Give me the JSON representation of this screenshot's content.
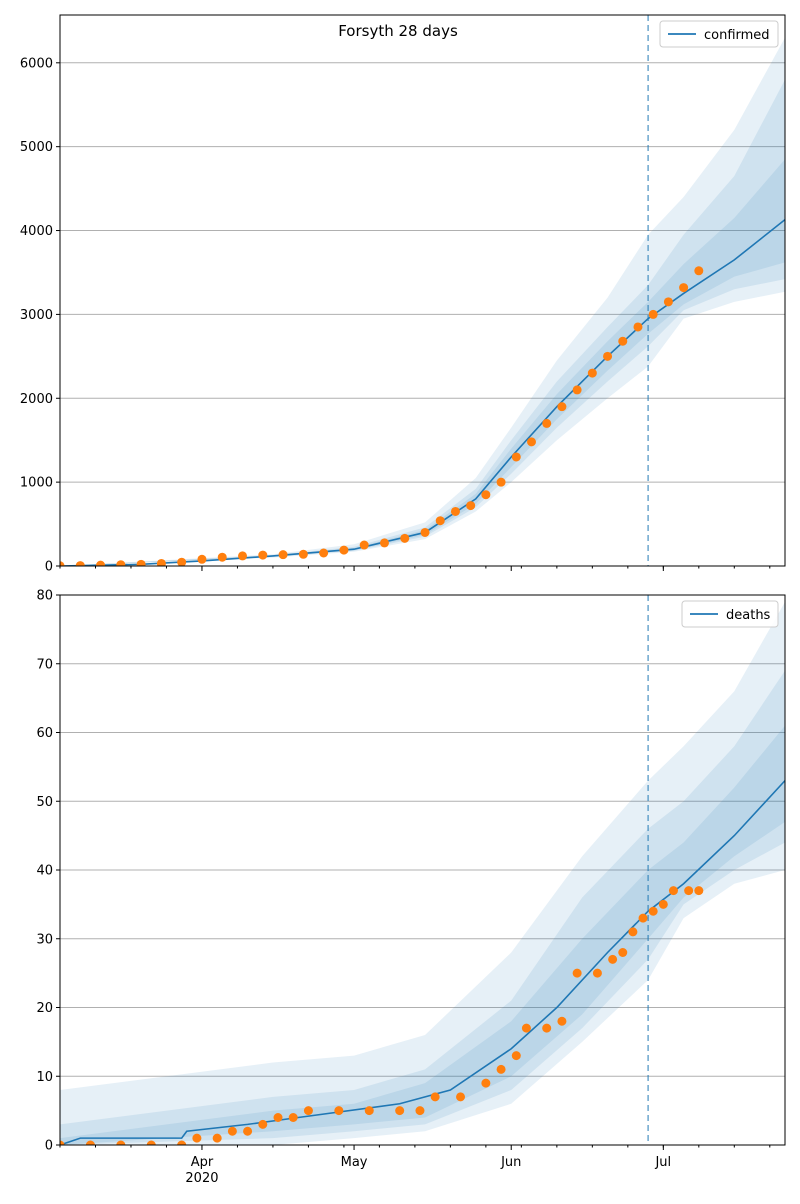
{
  "figure": {
    "title": "Forsyth 28 days"
  },
  "chart_data": [
    {
      "type": "line",
      "legend": "confirmed",
      "legend_position": "top-right",
      "grid": "horizontal",
      "ylim": [
        0,
        6570
      ],
      "y_ticks": [
        0,
        1000,
        2000,
        3000,
        4000,
        5000,
        6000
      ],
      "x_ticks": [
        {
          "value": "2020-04-01",
          "label": "Apr",
          "sublabel": "2020"
        },
        {
          "value": "2020-05-01",
          "label": "May",
          "sublabel": ""
        },
        {
          "value": "2020-06-01",
          "label": "Jun",
          "sublabel": ""
        },
        {
          "value": "2020-07-01",
          "label": "Jul",
          "sublabel": ""
        }
      ],
      "xlim": [
        "2020-03-04",
        "2020-07-25"
      ],
      "forecast_start": "2020-06-28",
      "colors": {
        "model": "#1f77b4",
        "observed": "#ff7f0e",
        "band": "#1f77b4"
      },
      "model_series": {
        "name": "confirmed",
        "points": [
          [
            "2020-03-04",
            0
          ],
          [
            "2020-03-20",
            20
          ],
          [
            "2020-04-01",
            60
          ],
          [
            "2020-04-15",
            120
          ],
          [
            "2020-05-01",
            200
          ],
          [
            "2020-05-15",
            400
          ],
          [
            "2020-05-25",
            800
          ],
          [
            "2020-06-01",
            1300
          ],
          [
            "2020-06-10",
            1900
          ],
          [
            "2020-06-20",
            2500
          ],
          [
            "2020-06-28",
            2950
          ],
          [
            "2020-07-05",
            3250
          ],
          [
            "2020-07-15",
            3650
          ],
          [
            "2020-07-25",
            4130
          ]
        ]
      },
      "bands": [
        {
          "name": "outer",
          "points": [
            [
              "2020-03-04",
              0,
              0
            ],
            [
              "2020-04-15",
              100,
              140
            ],
            [
              "2020-05-01",
              170,
              260
            ],
            [
              "2020-05-15",
              320,
              520
            ],
            [
              "2020-05-25",
              650,
              1050
            ],
            [
              "2020-06-01",
              1000,
              1650
            ],
            [
              "2020-06-10",
              1500,
              2450
            ],
            [
              "2020-06-20",
              2000,
              3200
            ],
            [
              "2020-06-28",
              2380,
              3950
            ],
            [
              "2020-07-05",
              2950,
              4400
            ],
            [
              "2020-07-15",
              3150,
              5200
            ],
            [
              "2020-07-25",
              3270,
              6300
            ]
          ]
        },
        {
          "name": "middle",
          "points": [
            [
              "2020-03-04",
              0,
              0
            ],
            [
              "2020-04-15",
              108,
              130
            ],
            [
              "2020-05-01",
              180,
              230
            ],
            [
              "2020-05-15",
              350,
              460
            ],
            [
              "2020-05-25",
              700,
              920
            ],
            [
              "2020-06-01",
              1100,
              1500
            ],
            [
              "2020-06-10",
              1650,
              2200
            ],
            [
              "2020-06-20",
              2200,
              2850
            ],
            [
              "2020-06-28",
              2620,
              3350
            ],
            [
              "2020-07-05",
              3050,
              3950
            ],
            [
              "2020-07-15",
              3300,
              4650
            ],
            [
              "2020-07-25",
              3420,
              5800
            ]
          ]
        },
        {
          "name": "inner",
          "points": [
            [
              "2020-03-04",
              0,
              0
            ],
            [
              "2020-04-15",
              112,
              126
            ],
            [
              "2020-05-01",
              188,
              215
            ],
            [
              "2020-05-15",
              370,
              430
            ],
            [
              "2020-05-25",
              740,
              860
            ],
            [
              "2020-06-01",
              1180,
              1400
            ],
            [
              "2020-06-10",
              1750,
              2050
            ],
            [
              "2020-06-20",
              2330,
              2680
            ],
            [
              "2020-06-28",
              2770,
              3150
            ],
            [
              "2020-07-05",
              3120,
              3600
            ],
            [
              "2020-07-15",
              3450,
              4150
            ],
            [
              "2020-07-25",
              3620,
              4850
            ]
          ]
        }
      ],
      "observed": {
        "name": "observed",
        "points": [
          [
            "2020-03-04",
            3
          ],
          [
            "2020-03-08",
            5
          ],
          [
            "2020-03-12",
            10
          ],
          [
            "2020-03-16",
            15
          ],
          [
            "2020-03-20",
            20
          ],
          [
            "2020-03-24",
            30
          ],
          [
            "2020-03-28",
            45
          ],
          [
            "2020-04-01",
            80
          ],
          [
            "2020-04-05",
            105
          ],
          [
            "2020-04-09",
            120
          ],
          [
            "2020-04-13",
            130
          ],
          [
            "2020-04-17",
            135
          ],
          [
            "2020-04-21",
            140
          ],
          [
            "2020-04-25",
            155
          ],
          [
            "2020-04-29",
            190
          ],
          [
            "2020-05-03",
            250
          ],
          [
            "2020-05-07",
            275
          ],
          [
            "2020-05-11",
            330
          ],
          [
            "2020-05-15",
            400
          ],
          [
            "2020-05-18",
            540
          ],
          [
            "2020-05-21",
            650
          ],
          [
            "2020-05-24",
            720
          ],
          [
            "2020-05-27",
            850
          ],
          [
            "2020-05-30",
            1000
          ],
          [
            "2020-06-02",
            1300
          ],
          [
            "2020-06-05",
            1480
          ],
          [
            "2020-06-08",
            1700
          ],
          [
            "2020-06-11",
            1900
          ],
          [
            "2020-06-14",
            2100
          ],
          [
            "2020-06-17",
            2300
          ],
          [
            "2020-06-20",
            2500
          ],
          [
            "2020-06-23",
            2680
          ],
          [
            "2020-06-26",
            2850
          ],
          [
            "2020-06-29",
            3000
          ],
          [
            "2020-07-02",
            3150
          ],
          [
            "2020-07-05",
            3320
          ],
          [
            "2020-07-08",
            3520
          ]
        ]
      }
    },
    {
      "type": "line",
      "legend": "deaths",
      "legend_position": "top-right",
      "grid": "horizontal",
      "ylim": [
        0,
        80
      ],
      "y_ticks": [
        0,
        10,
        20,
        30,
        40,
        50,
        60,
        70,
        80
      ],
      "x_ticks": [
        {
          "value": "2020-04-01",
          "label": "Apr",
          "sublabel": "2020"
        },
        {
          "value": "2020-05-01",
          "label": "May",
          "sublabel": ""
        },
        {
          "value": "2020-06-01",
          "label": "Jun",
          "sublabel": ""
        },
        {
          "value": "2020-07-01",
          "label": "Jul",
          "sublabel": ""
        }
      ],
      "xlim": [
        "2020-03-04",
        "2020-07-25"
      ],
      "forecast_start": "2020-06-28",
      "colors": {
        "model": "#1f77b4",
        "observed": "#ff7f0e",
        "band": "#1f77b4"
      },
      "model_series": {
        "name": "deaths",
        "points": [
          [
            "2020-03-04",
            0
          ],
          [
            "2020-03-08",
            1
          ],
          [
            "2020-03-28",
            1
          ],
          [
            "2020-03-29",
            2
          ],
          [
            "2020-04-10",
            3
          ],
          [
            "2020-04-20",
            4
          ],
          [
            "2020-05-10",
            6
          ],
          [
            "2020-05-20",
            8
          ],
          [
            "2020-06-01",
            14
          ],
          [
            "2020-06-10",
            20
          ],
          [
            "2020-06-20",
            28
          ],
          [
            "2020-06-28",
            34
          ],
          [
            "2020-07-05",
            38
          ],
          [
            "2020-07-15",
            45
          ],
          [
            "2020-07-25",
            53
          ]
        ]
      },
      "bands": [
        {
          "name": "outer",
          "points": [
            [
              "2020-03-04",
              0,
              8
            ],
            [
              "2020-04-15",
              0,
              12
            ],
            [
              "2020-05-01",
              1,
              13
            ],
            [
              "2020-05-15",
              2,
              16
            ],
            [
              "2020-06-01",
              6,
              28
            ],
            [
              "2020-06-15",
              15,
              42
            ],
            [
              "2020-06-28",
              24,
              53
            ],
            [
              "2020-07-05",
              33,
              58
            ],
            [
              "2020-07-15",
              38,
              66
            ],
            [
              "2020-07-25",
              40,
              79
            ]
          ]
        },
        {
          "name": "middle",
          "points": [
            [
              "2020-03-04",
              0,
              3
            ],
            [
              "2020-04-15",
              1,
              7
            ],
            [
              "2020-05-01",
              2,
              8
            ],
            [
              "2020-05-15",
              3,
              11
            ],
            [
              "2020-06-01",
              8,
              21
            ],
            [
              "2020-06-15",
              17,
              36
            ],
            [
              "2020-06-28",
              27,
              46
            ],
            [
              "2020-07-05",
              35,
              50
            ],
            [
              "2020-07-15",
              40,
              58
            ],
            [
              "2020-07-25",
              44,
              69
            ]
          ]
        },
        {
          "name": "inner",
          "points": [
            [
              "2020-03-04",
              0,
              1
            ],
            [
              "2020-04-15",
              2,
              5
            ],
            [
              "2020-05-01",
              3,
              6
            ],
            [
              "2020-05-15",
              4,
              9
            ],
            [
              "2020-06-01",
              10,
              18
            ],
            [
              "2020-06-15",
              19,
              30
            ],
            [
              "2020-06-28",
              30,
              40
            ],
            [
              "2020-07-05",
              36,
              44
            ],
            [
              "2020-07-15",
              42,
              52
            ],
            [
              "2020-07-25",
              47,
              61
            ]
          ]
        }
      ],
      "observed": {
        "name": "observed",
        "points": [
          [
            "2020-03-04",
            0
          ],
          [
            "2020-03-10",
            0
          ],
          [
            "2020-03-16",
            0
          ],
          [
            "2020-03-22",
            0
          ],
          [
            "2020-03-28",
            0
          ],
          [
            "2020-03-31",
            1
          ],
          [
            "2020-04-04",
            1
          ],
          [
            "2020-04-07",
            2
          ],
          [
            "2020-04-10",
            2
          ],
          [
            "2020-04-13",
            3
          ],
          [
            "2020-04-16",
            4
          ],
          [
            "2020-04-19",
            4
          ],
          [
            "2020-04-22",
            5
          ],
          [
            "2020-04-28",
            5
          ],
          [
            "2020-05-04",
            5
          ],
          [
            "2020-05-10",
            5
          ],
          [
            "2020-05-14",
            5
          ],
          [
            "2020-05-17",
            7
          ],
          [
            "2020-05-22",
            7
          ],
          [
            "2020-05-27",
            9
          ],
          [
            "2020-05-30",
            11
          ],
          [
            "2020-06-02",
            13
          ],
          [
            "2020-06-04",
            17
          ],
          [
            "2020-06-08",
            17
          ],
          [
            "2020-06-11",
            18
          ],
          [
            "2020-06-14",
            25
          ],
          [
            "2020-06-18",
            25
          ],
          [
            "2020-06-21",
            27
          ],
          [
            "2020-06-23",
            28
          ],
          [
            "2020-06-25",
            31
          ],
          [
            "2020-06-27",
            33
          ],
          [
            "2020-06-29",
            34
          ],
          [
            "2020-07-01",
            35
          ],
          [
            "2020-07-03",
            37
          ],
          [
            "2020-07-06",
            37
          ],
          [
            "2020-07-08",
            37
          ]
        ]
      }
    }
  ]
}
